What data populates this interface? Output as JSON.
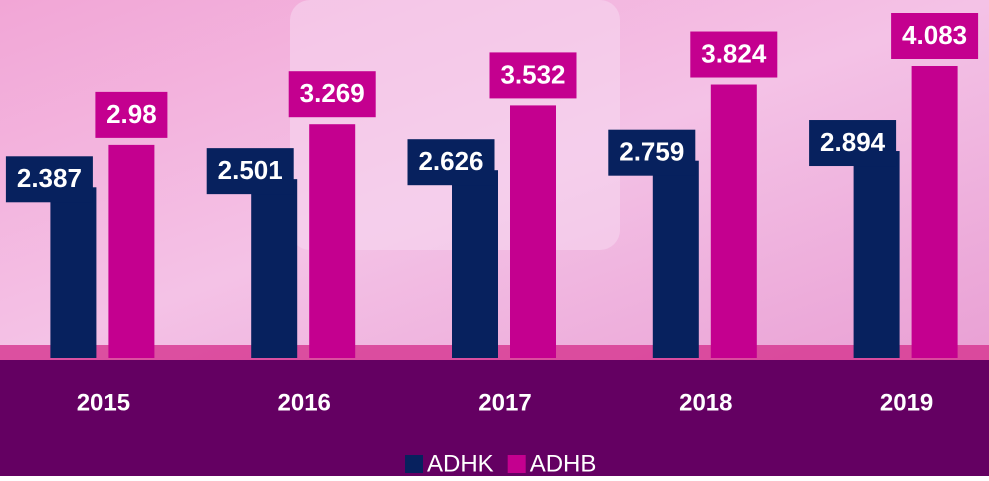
{
  "chart_data": {
    "type": "bar",
    "categories": [
      "2015",
      "2016",
      "2017",
      "2018",
      "2019"
    ],
    "series": [
      {
        "name": "ADHK",
        "color": "#07215e",
        "values": [
          2.387,
          2.501,
          2.626,
          2.759,
          2.894
        ]
      },
      {
        "name": "ADHB",
        "color": "#c4008f",
        "values": [
          2.98,
          3.269,
          3.532,
          3.824,
          4.083
        ]
      }
    ],
    "legend": "bottom"
  }
}
